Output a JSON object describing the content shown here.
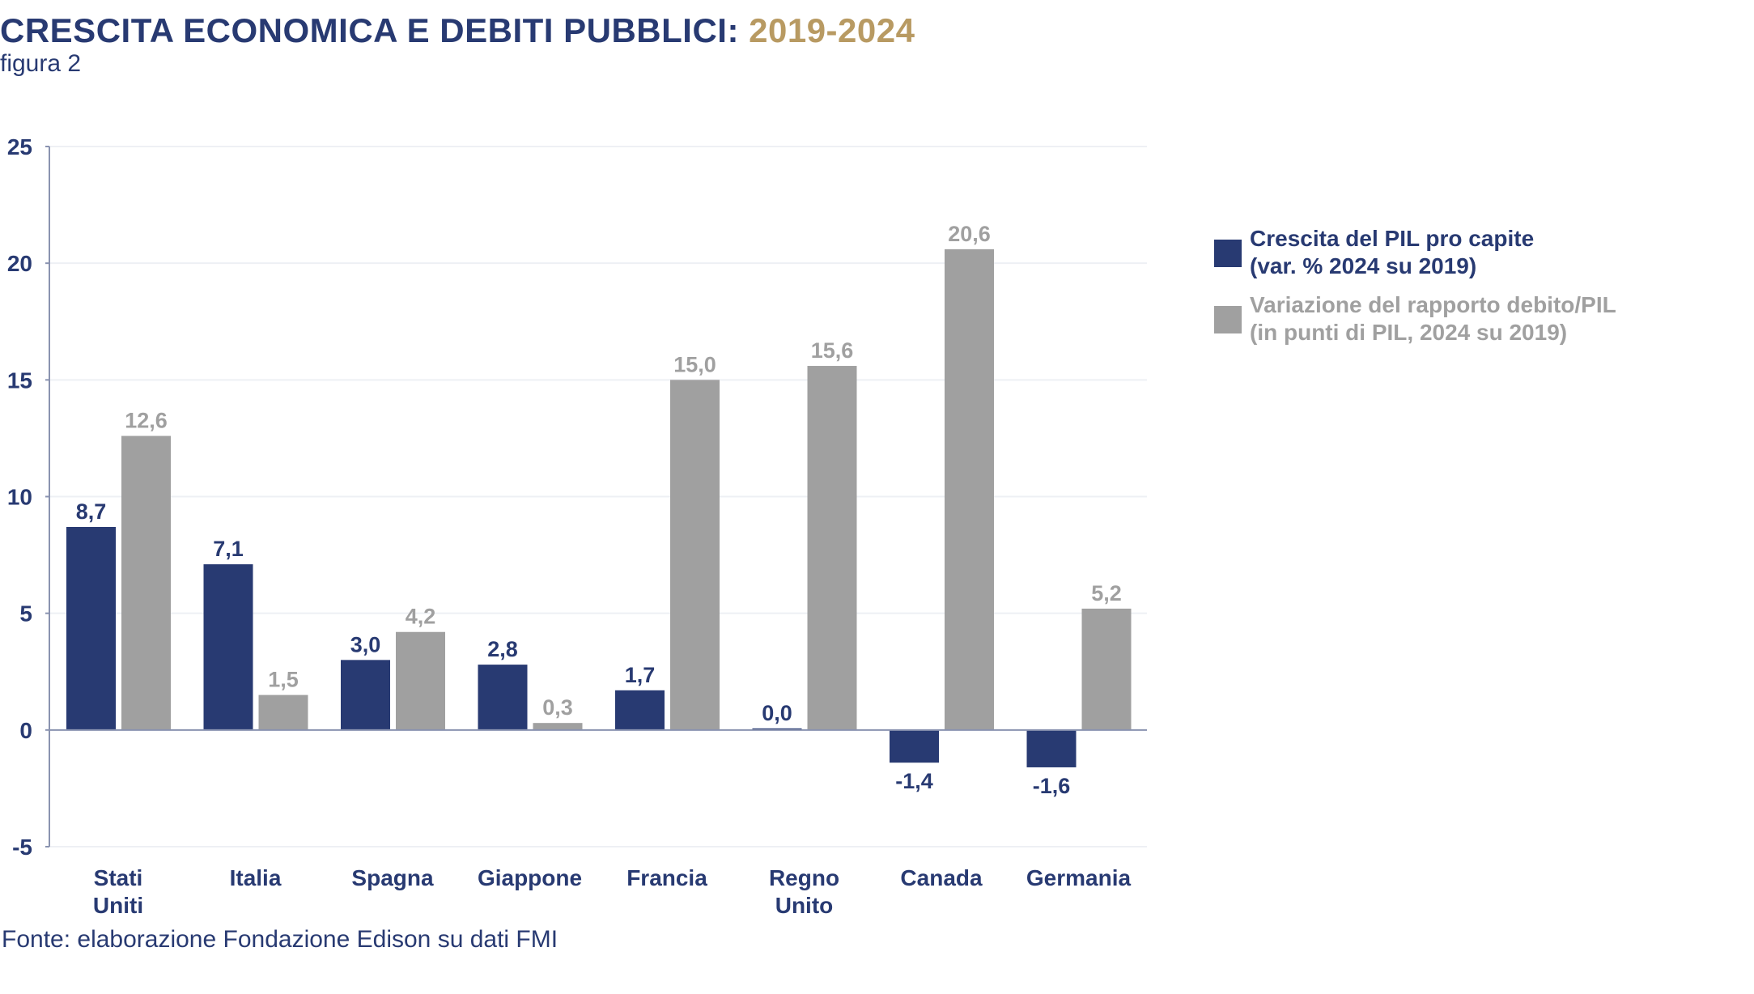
{
  "header": {
    "title": "CRESCITA ECONOMICA E DEBITI PUBBLICI:",
    "title_years": "2019-2024",
    "subtitle": "figura 2"
  },
  "source": "Fonte: elaborazione Fondazione Edison su dati FMI",
  "colors": {
    "series1": "#283a72",
    "series2": "#a0a0a0",
    "accent": "#b89a62"
  },
  "chart_data": {
    "type": "bar",
    "title": "CRESCITA ECONOMICA E DEBITI PUBBLICI: 2019-2024",
    "categories": [
      [
        "Stati",
        "Uniti"
      ],
      [
        "Italia"
      ],
      [
        "Spagna"
      ],
      [
        "Giappone"
      ],
      [
        "Francia"
      ],
      [
        "Regno",
        "Unito"
      ],
      [
        "Canada"
      ],
      [
        "Germania"
      ]
    ],
    "series": [
      {
        "name": "Crescita del PIL pro capite",
        "name_line2": "(var. % 2024 su 2019)",
        "values": [
          8.7,
          7.1,
          3.0,
          2.8,
          1.7,
          0.0,
          -1.4,
          -1.6
        ],
        "labels": [
          "8,7",
          "7,1",
          "3,0",
          "2,8",
          "1,7",
          "0,0",
          "-1,4",
          "-1,6"
        ]
      },
      {
        "name": "Variazione del rapporto debito/PIL",
        "name_line2": "(in punti di PIL, 2024 su 2019)",
        "values": [
          12.6,
          1.5,
          4.2,
          0.3,
          15.0,
          15.6,
          20.6,
          5.2
        ],
        "labels": [
          "12,6",
          "1,5",
          "4,2",
          "0,3",
          "15,0",
          "15,6",
          "20,6",
          "5,2"
        ]
      }
    ],
    "yticks": [
      -5,
      0,
      5,
      10,
      15,
      20,
      25
    ],
    "ylim": [
      -5,
      25
    ],
    "xlabel": "",
    "ylabel": "",
    "grid": true,
    "legend": "right"
  }
}
